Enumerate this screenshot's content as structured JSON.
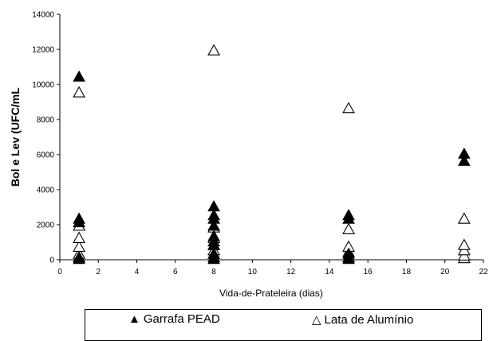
{
  "chart_data": {
    "type": "scatter",
    "title": "",
    "xlabel": "Vida-de-Prateleira (dias)",
    "ylabel": "Bol e Lev (UFC/mL",
    "xlim": [
      0,
      22
    ],
    "ylim": [
      0,
      14000
    ],
    "xticks": [
      "0",
      "2",
      "4",
      "6",
      "8",
      "10",
      "12",
      "14",
      "16",
      "18",
      "20",
      "22"
    ],
    "yticks": [
      "0",
      "2000",
      "4000",
      "6000",
      "8000",
      "10000",
      "12000",
      "14000"
    ],
    "grid": false,
    "legend_position": "bottom",
    "series": [
      {
        "name": "Garrafa PEAD",
        "marker": "filled-triangle",
        "color": "#000000",
        "points": [
          [
            1,
            10400
          ],
          [
            1,
            2300
          ],
          [
            1,
            2100
          ],
          [
            1,
            100
          ],
          [
            1,
            0
          ],
          [
            8,
            3000
          ],
          [
            8,
            2500
          ],
          [
            8,
            2300
          ],
          [
            8,
            1900
          ],
          [
            8,
            1300
          ],
          [
            8,
            1000
          ],
          [
            8,
            800
          ],
          [
            8,
            300
          ],
          [
            8,
            0
          ],
          [
            15,
            2500
          ],
          [
            15,
            2300
          ],
          [
            15,
            300
          ],
          [
            15,
            100
          ],
          [
            15,
            0
          ],
          [
            21,
            6000
          ],
          [
            21,
            5600
          ]
        ]
      },
      {
        "name": "Lata de Alumínio",
        "marker": "hollow-triangle",
        "color": "#000000",
        "points": [
          [
            1,
            9500
          ],
          [
            1,
            1900
          ],
          [
            1,
            1200
          ],
          [
            1,
            700
          ],
          [
            1,
            300
          ],
          [
            1,
            100
          ],
          [
            8,
            11900
          ],
          [
            8,
            1800
          ],
          [
            8,
            1200
          ],
          [
            8,
            800
          ],
          [
            8,
            500
          ],
          [
            8,
            300
          ],
          [
            8,
            100
          ],
          [
            15,
            8600
          ],
          [
            15,
            1700
          ],
          [
            15,
            700
          ],
          [
            15,
            400
          ],
          [
            15,
            100
          ],
          [
            21,
            2300
          ],
          [
            21,
            800
          ],
          [
            21,
            500
          ],
          [
            21,
            200
          ],
          [
            21,
            50
          ]
        ]
      }
    ]
  }
}
